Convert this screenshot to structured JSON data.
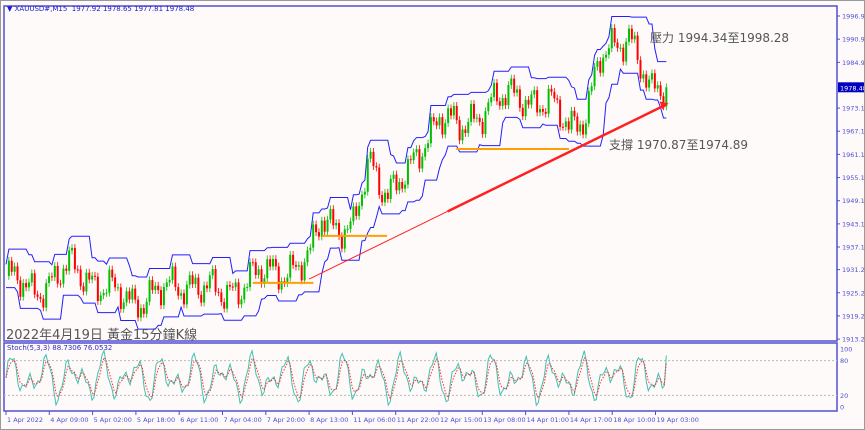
{
  "header": {
    "symbol": "XAUUSD#,M15",
    "ohlc": "1977.92 1978.65 1977.81 1978.48"
  },
  "annotations": {
    "note": "2022年4月19日 黃金15分鐘K線",
    "resistance": "壓力 1994.34至1998.28",
    "support": "支撐 1970.87至1974.89"
  },
  "colors": {
    "bull": "#00c000",
    "bear": "#ff0000",
    "bands": "#2020ff",
    "trendline": "#ff2020",
    "level": "#ffa000",
    "stoch_main": "#40c0b0",
    "stoch_signal": "#ff3030",
    "axis": "#5050d0"
  },
  "chart_data": {
    "type": "candlestick",
    "price_axis": {
      "ticks": [
        "1996.95",
        "1990.95",
        "1984.95",
        "1978.48",
        "1973.10",
        "1967.10",
        "1961.10",
        "1955.10",
        "1949.10",
        "1943.10",
        "1937.10",
        "1931.25",
        "1925.25",
        "1919.25",
        "1913.25"
      ],
      "range": [
        1913.25,
        1999.5
      ],
      "current": "1978.48"
    },
    "time_axis": [
      "1 Apr 2022",
      "4 Apr 09:00",
      "5 Apr 02:00",
      "5 Apr 18:00",
      "6 Apr 11:00",
      "7 Apr 04:00",
      "7 Apr 20:00",
      "8 Apr 13:00",
      "11 Apr 06:00",
      "11 Apr 22:00",
      "12 Apr 15:00",
      "13 Apr 08:00",
      "14 Apr 01:00",
      "14 Apr 17:00",
      "18 Apr 10:00",
      "19 Apr 03:00"
    ],
    "approx_close_by_label_index": [
      [
        0,
        1929.6
      ],
      [
        0.6,
        1925.7
      ],
      [
        1,
        1928
      ],
      [
        1.5,
        1932
      ],
      [
        2.2,
        1927
      ],
      [
        2.9,
        1923
      ],
      [
        3.6,
        1925.7
      ],
      [
        4.3,
        1928
      ],
      [
        5,
        1924.4
      ],
      [
        5.7,
        1929.6
      ],
      [
        6.4,
        1931
      ],
      [
        7,
        1933.5
      ],
      [
        7.3,
        1945
      ],
      [
        8,
        1941
      ],
      [
        8.4,
        1959
      ],
      [
        8.8,
        1951.6
      ],
      [
        9.3,
        1955.5
      ],
      [
        10,
        1972
      ],
      [
        10.5,
        1967
      ],
      [
        11.2,
        1975
      ],
      [
        11.9,
        1976.2
      ],
      [
        12.6,
        1973.6
      ],
      [
        13,
        1968.5
      ],
      [
        13.4,
        1972
      ],
      [
        13.7,
        1985
      ],
      [
        14.2,
        1990.5
      ],
      [
        14.4,
        1993
      ],
      [
        14.7,
        1982.7
      ],
      [
        14.9,
        1976
      ],
      [
        15.25,
        1978.48
      ]
    ],
    "trendline": {
      "from": [
        7,
        1928.8
      ],
      "to": [
        15.3,
        1974.3
      ]
    },
    "levels": [
      {
        "from": 5.7,
        "to": 7.1,
        "price": 1927.8
      },
      {
        "from": 7.3,
        "to": 8.8,
        "price": 1940
      },
      {
        "from": 10.4,
        "to": 13,
        "price": 1962.5
      }
    ],
    "stochastic": {
      "label": "Stoch(5,3,3) 88.7306 76.0532",
      "main": 88.7306,
      "signal": 76.0532,
      "levels": [
        "100",
        "80",
        "20",
        "0"
      ]
    }
  }
}
